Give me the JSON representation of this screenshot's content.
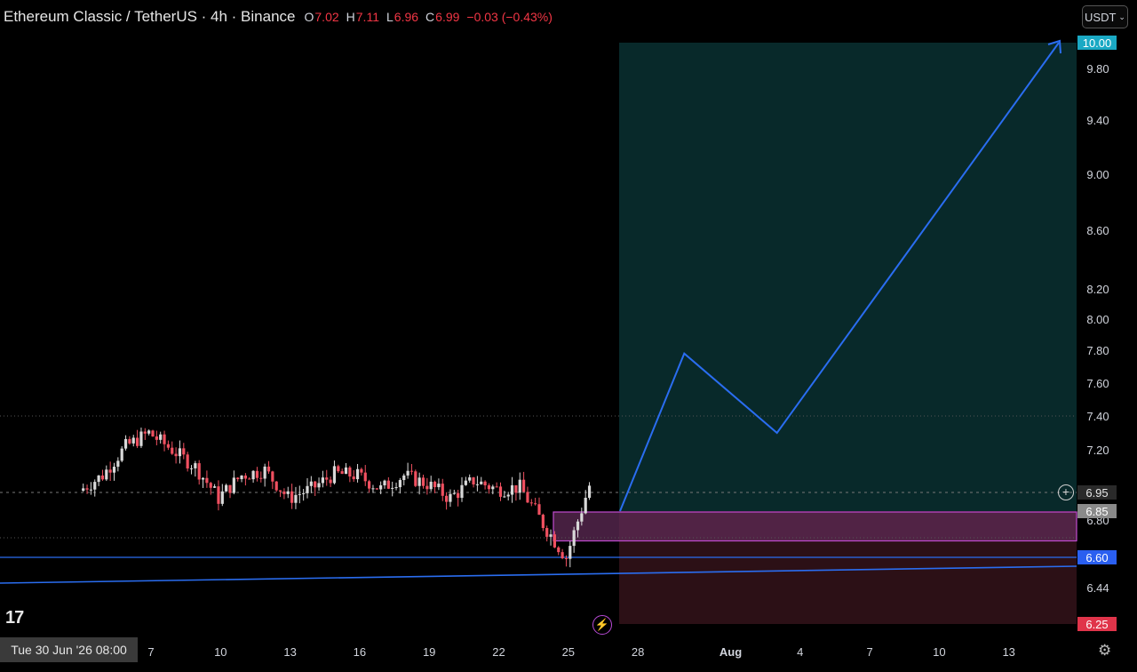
{
  "header": {
    "title": "Ethereum Classic / TetherUS · 4h · Binance",
    "open_key": "O",
    "open": "7.02",
    "high_key": "H",
    "high": "7.11",
    "low_key": "L",
    "low": "6.96",
    "close_key": "C",
    "close": "6.99",
    "change": "−0.03 (−0.43%)"
  },
  "currency_selector": {
    "label": "USDT",
    "chevron": "⌄"
  },
  "crosshair_time": "Tue 30 Jun '26   08:00",
  "colors": {
    "up": "#d9d9d9",
    "down": "#f05060",
    "projection": "#2a6df0",
    "target_zone": "#08292a",
    "stop_zone": "#2c1016",
    "entry_box": "#5e2a55"
  },
  "price_tags": {
    "target": "10.00",
    "current": "6.95",
    "entry": "6.85",
    "support": "6.60",
    "stop": "6.25"
  },
  "icons": [
    "tradingview-logo-icon",
    "lightning-icon",
    "add-alert-icon",
    "gear-icon"
  ],
  "chart_data": {
    "type": "candlestick",
    "y_ticks": [
      "9.80",
      "9.40",
      "9.00",
      "8.60",
      "8.20",
      "8.00",
      "7.80",
      "7.60",
      "7.40",
      "7.20",
      "6.80",
      "6.44"
    ],
    "x_ticks": [
      "7",
      "10",
      "13",
      "16",
      "19",
      "22",
      "25",
      "28",
      "Aug",
      "4",
      "7",
      "10",
      "13"
    ],
    "x_range_days": [
      "2026-07-04",
      "2026-08-16"
    ],
    "y_range": [
      6.25,
      10.0
    ],
    "approx_close_path": [
      {
        "date": "2026-07-04",
        "close": 6.96
      },
      {
        "date": "2026-07-05",
        "close": 7.05
      },
      {
        "date": "2026-07-06",
        "close": 7.22
      },
      {
        "date": "2026-07-07",
        "close": 7.3
      },
      {
        "date": "2026-07-08",
        "close": 7.2
      },
      {
        "date": "2026-07-09",
        "close": 7.1
      },
      {
        "date": "2026-07-10",
        "close": 6.92
      },
      {
        "date": "2026-07-11",
        "close": 7.05
      },
      {
        "date": "2026-07-12",
        "close": 7.08
      },
      {
        "date": "2026-07-13",
        "close": 6.92
      },
      {
        "date": "2026-07-14",
        "close": 6.97
      },
      {
        "date": "2026-07-15",
        "close": 7.06
      },
      {
        "date": "2026-07-16",
        "close": 7.05
      },
      {
        "date": "2026-07-17",
        "close": 6.97
      },
      {
        "date": "2026-07-18",
        "close": 7.05
      },
      {
        "date": "2026-07-19",
        "close": 7.0
      },
      {
        "date": "2026-07-20",
        "close": 6.92
      },
      {
        "date": "2026-07-21",
        "close": 7.02
      },
      {
        "date": "2026-07-22",
        "close": 6.97
      },
      {
        "date": "2026-07-23",
        "close": 6.98
      },
      {
        "date": "2026-07-24",
        "close": 6.78
      },
      {
        "date": "2026-07-25",
        "close": 6.6
      },
      {
        "date": "2026-07-26",
        "close": 6.99
      }
    ],
    "target_zone": [
      6.85,
      10.0
    ],
    "stop_zone": [
      6.25,
      6.85
    ],
    "entry_box": [
      6.75,
      6.85
    ],
    "projection_path": [
      {
        "date": "2026-07-27",
        "price": 6.85
      },
      {
        "date": "2026-07-30",
        "price": 7.78
      },
      {
        "date": "2026-08-03",
        "price": 7.3
      },
      {
        "date": "2026-08-15",
        "price": 10.0
      }
    ],
    "support_line": 6.6,
    "current_price": 6.95,
    "dotted_level": 7.4
  }
}
